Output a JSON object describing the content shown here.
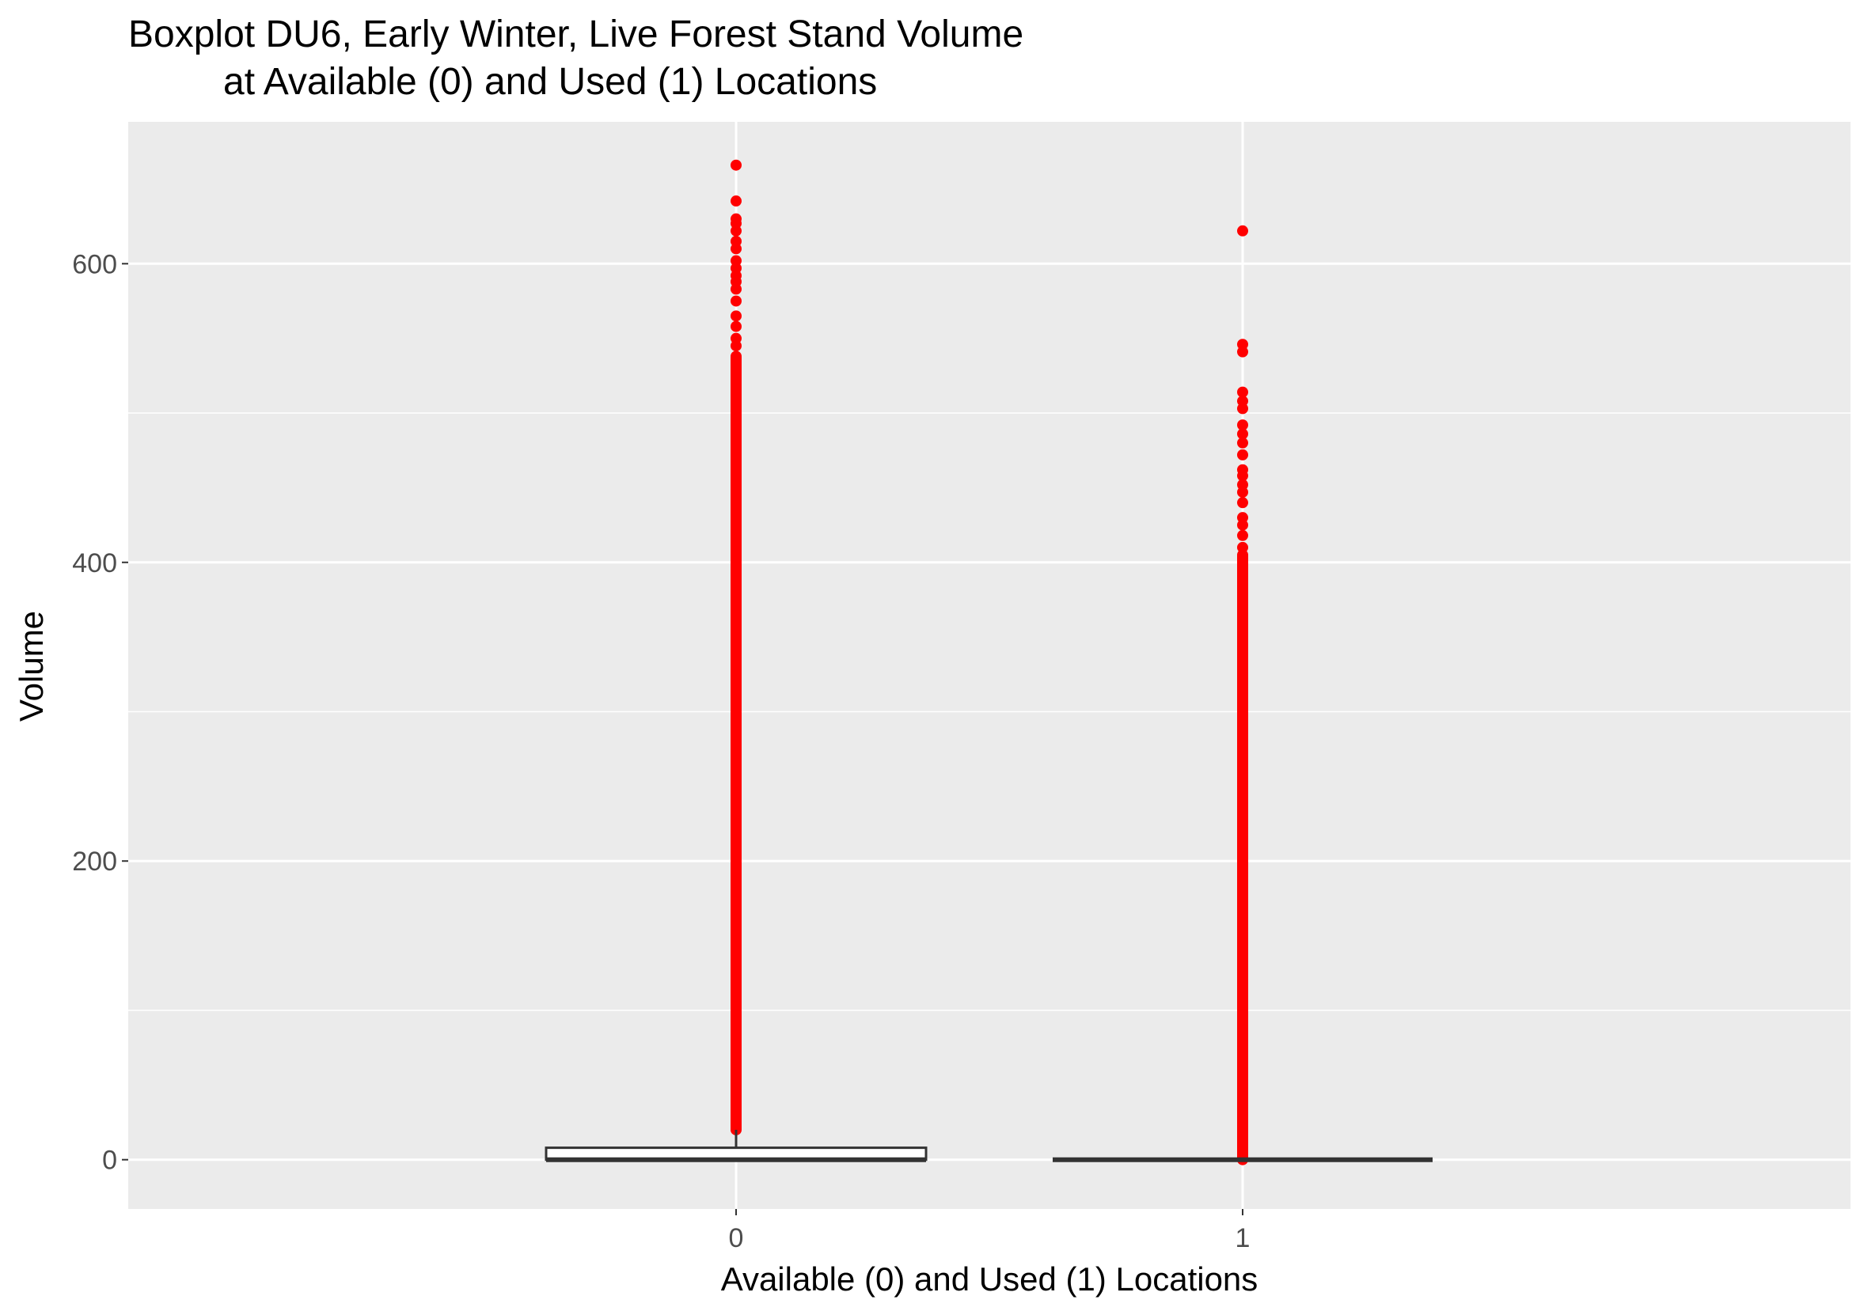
{
  "chart_data": {
    "type": "boxplot",
    "title": "Boxplot DU6, Early Winter, Live Forest Stand Volume",
    "subtitle": "at Available (0) and Used (1) Locations",
    "xlabel": "Available (0) and Used (1) Locations",
    "ylabel": "Volume",
    "categories": [
      "0",
      "1"
    ],
    "ylim": [
      -33,
      695
    ],
    "yticks": [
      0,
      200,
      400,
      600
    ],
    "y_minor_grid": [
      100,
      300,
      500
    ],
    "grid": true,
    "panel_background": "#ebebeb",
    "outlier_color": "#ff0000",
    "box_color": "#333333",
    "boxes": [
      {
        "category": "0",
        "min": 0,
        "q1": 0,
        "median": 0,
        "q3": 8,
        "whisker_high": 20,
        "outlier_range": [
          20,
          538
        ],
        "outliers_high": [
          545,
          550,
          558,
          565,
          575,
          583,
          588,
          592,
          597,
          602,
          610,
          615,
          622,
          627,
          630,
          642,
          666
        ]
      },
      {
        "category": "1",
        "min": 0,
        "q1": 0,
        "median": 0,
        "q3": 0,
        "whisker_high": 0,
        "outlier_range": [
          0,
          405
        ],
        "outliers_high": [
          410,
          418,
          425,
          430,
          440,
          447,
          452,
          458,
          462,
          472,
          480,
          486,
          492,
          503,
          508,
          514,
          541,
          546,
          622
        ]
      }
    ]
  }
}
